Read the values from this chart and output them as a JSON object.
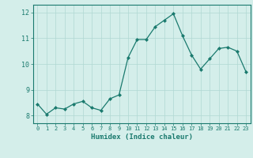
{
  "x": [
    0,
    1,
    2,
    3,
    4,
    5,
    6,
    7,
    8,
    9,
    10,
    11,
    12,
    13,
    14,
    15,
    16,
    17,
    18,
    19,
    20,
    21,
    22,
    23
  ],
  "y": [
    8.45,
    8.05,
    8.3,
    8.25,
    8.45,
    8.55,
    8.3,
    8.2,
    8.65,
    8.8,
    10.25,
    10.95,
    10.95,
    11.45,
    11.7,
    11.95,
    11.1,
    10.35,
    9.8,
    10.2,
    10.6,
    10.65,
    10.5,
    9.7
  ],
  "xlabel": "Humidex (Indice chaleur)",
  "xlim": [
    -0.5,
    23.5
  ],
  "ylim": [
    7.7,
    12.3
  ],
  "yticks": [
    8,
    9,
    10,
    11,
    12
  ],
  "xticks": [
    0,
    1,
    2,
    3,
    4,
    5,
    6,
    7,
    8,
    9,
    10,
    11,
    12,
    13,
    14,
    15,
    16,
    17,
    18,
    19,
    20,
    21,
    22,
    23
  ],
  "line_color": "#1a7a6e",
  "marker_color": "#1a7a6e",
  "bg_color": "#d4eeea",
  "grid_color": "#b0d8d2",
  "axis_color": "#1a7a6e",
  "label_color": "#1a7a6e",
  "tick_color": "#1a7a6e"
}
